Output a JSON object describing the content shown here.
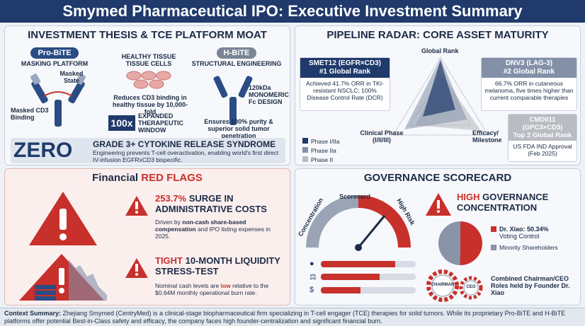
{
  "title": "Smymed Pharmaceutical IPO: Executive Investment Summary",
  "thesis": {
    "heading": "INVESTMENT THESIS & TCE PLATFORM MOAT",
    "probite_pill": "Pro-BiTE",
    "probite_sub": "MASKING PLATFORM",
    "masked_state": "Masked\nState",
    "masked_cd3": "Masked CD3\nBinding",
    "healthy_tissue": "HEALTHY TISSUE\nTISSUE CELLS",
    "reduces": "Reduces CD3 binding in healthy tissue by 10,000-fold",
    "badge_100x": "100x",
    "expanded": "EXPANDED THERAPEUTIC WINDOW",
    "hbite_pill": "H-BiTE",
    "hbite_sub": "STRUCTURAL ENGINEERING",
    "monomeric": "120kDa\nMONOMERIC\nFc DESIGN",
    "ensures": "Ensures 100% purity & superior solid tumor penetration",
    "zero": "ZERO",
    "grade3": "GRADE 3+ CYTOKINE RELEASE SYNDROME",
    "grade3_desc": "Engineering prevents T-cell overactivation, enabling world's first direct IV-infusion EGFRxCD3 bispecific."
  },
  "pipeline": {
    "heading": "PIPELINE RADAR: CORE ASSET MATURITY",
    "axis_top": "Global Rank",
    "axis_left": "Clinical Phase\n(I/II/III)",
    "axis_right": "Efficacy/\nMilestone",
    "assets": [
      {
        "title": "SMET12 (EGFR×CD3)",
        "rank": "#1 Global Rank",
        "desc": "Achieved 41.7% ORR in TKI-resistant NSCLC; 100% Disease Control Rate (DCR)"
      },
      {
        "title": "DNV3 (LAG-3)",
        "rank": "#2 Global Rank",
        "desc": "66.7% ORR in cutaneous melanoma, five times higher than current comparable therapies"
      },
      {
        "title": "CMD011 (GPC3×CD3)",
        "rank": "Top 2 Global Rank",
        "desc": "US FDA IND Approval (Feb 2025)"
      }
    ],
    "legend": [
      "Phase I/IIa",
      "Phase IIa",
      "Phase II"
    ],
    "colors": {
      "phase1": "#1f3a6b",
      "phase2": "#8390a8",
      "phase3": "#b9bcc2"
    }
  },
  "financial": {
    "heading_prefix": "Financial ",
    "heading_accent": "RED FLAGS",
    "flag1_title_a": "253.7%",
    "flag1_title_b": " SURGE IN ADMINISTRATIVE COSTS",
    "flag1_desc_a": "Driven by ",
    "flag1_desc_b": "non-cash share-based compensation",
    "flag1_desc_c": " and IPO listing expenses in 2025.",
    "flag2_title_a": "TIGHT",
    "flag2_title_b": " 10-MONTH LIQUIDITY STRESS-TEST",
    "flag2_desc_a": "Nominal cash levels are ",
    "flag2_desc_b": "low",
    "flag2_desc_c": " relative to the $0.64M monthly operational burn rate."
  },
  "governance": {
    "heading": "GOVERNANCE SCORECARD",
    "gauge_top": "Scorecard",
    "gauge_left": "Concentration",
    "gauge_right": "High Risk",
    "high_title_a": "HIGH",
    "high_title_b": " GOVERNANCE CONCENTRATION",
    "pie": [
      {
        "label": "Dr. Xiao: 50.34%",
        "sub": "Voting Control",
        "value": 50.34,
        "color": "#c8302c"
      },
      {
        "label": "Minority Shareholders",
        "sub": "",
        "value": 49.66,
        "color": "#8a94a8"
      }
    ],
    "gear_chairman": "CHAIRMAN",
    "gear_ceo": "CEO",
    "combined": "Combined Chairman/CEO Roles held by Founder Dr. Xiao",
    "bars": [
      0.78,
      0.62,
      0.42
    ]
  },
  "footer": {
    "label": "Context Summary:",
    "text": " Zhejiang Smymed (CentryMed) is a clinical-stage biopharmaceutical firm specializing in T-cell engager (TCE) therapies for solid tumors. While its proprietary Pro-BiTE and H-BiTE platforms offer potential Best-in-Class safety and efficacy, the company faces high founder-centralization and significant financial burn."
  }
}
